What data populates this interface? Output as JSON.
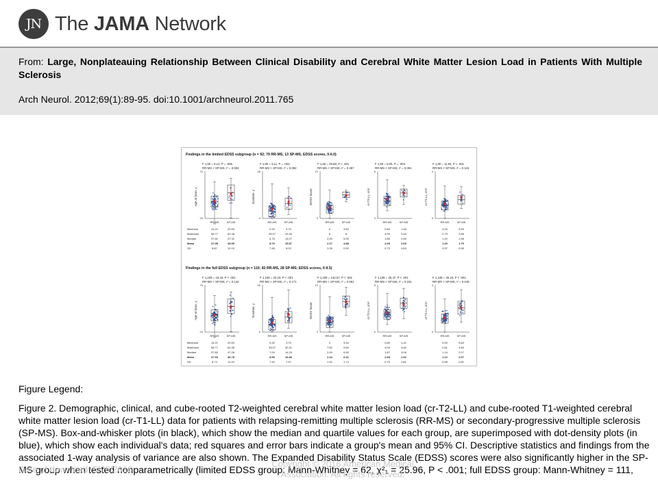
{
  "header": {
    "logo_mark": "JN",
    "logo_text_prefix": "The ",
    "logo_text_bold": "JAMA",
    "logo_text_suffix": " Network"
  },
  "citation": {
    "from_label": "From: ",
    "title": "Large, Nonplateauing Relationship Between Clinical Disability and Cerebral White Matter Lesion Load in Patients With Multiple Sclerosis",
    "reference": "Arch Neurol. 2012;69(1):89-95. doi:10.1001/archneurol.2011.765"
  },
  "figure": {
    "sections": [
      {
        "title": "Findings in the limited EDSS subgroup (n = 92; 79 RR-MS, 13 SP-MS; EDSS scores, 0-6.0)",
        "panels": [
          {
            "stat1": "F 1,90 = 8.14, P = .005",
            "stat2": "RR-MS < SP-MS, r² = 0.083",
            "ylabel": "Age at Scan, y",
            "ymax": "70",
            "ymin": "20",
            "rrms": {
              "min": 14.21,
              "max": 58.77,
              "median": 37.81,
              "mean": 37.95,
              "sd": 8.87
            },
            "spms": {
              "min": 20.53,
              "max": 62.48,
              "median": 47.32,
              "mean": 45.95,
              "sd": 12.15
            }
          },
          {
            "stat1": "F 1,90 = 9.11, P = .003",
            "stat2": "RR-MS < SP-MS, r² = 0.092",
            "ylabel": "Duration, y",
            "ymax": "45",
            "ymin": "0",
            "rrms": {
              "min": 0.32,
              "max": 33.07,
              "median": 6.75,
              "mean": 8.76,
              "sd": 7.46
            },
            "spms": {
              "min": 3.7,
              "max": 29.3,
              "median": 14.07,
              "mean": 15.57,
              "sd": 8.02
            }
          },
          {
            "stat1": "F 1,90 = 49.88, P < .001",
            "stat2": "RR-MS < SP-MS, r² = 0.357",
            "ylabel": "EDSS Score",
            "ymax": "10",
            "ymin": "0",
            "rrms": {
              "min": 0,
              "max": 6.0,
              "median": 2.0,
              "mean": 2.27,
              "sd": 1.28
            },
            "spms": {
              "min": 3.5,
              "max": 6.0,
              "median": 5.0,
              "mean": 4.88,
              "sd": 0.92
            }
          },
          {
            "stat1": "F 1,90 = 9.05, P = .003",
            "stat2": "RR-MS < SP-MS, r² = 0.091",
            "ylabel": "cr-T2-LL, cm³",
            "ymax": "5",
            "ymin": "0",
            "rrms": {
              "min": 0.8,
              "max": 4.09,
              "median": 1.85,
              "mean": 2.05,
              "sd": 0.73
            },
            "spms": {
              "min": 1.48,
              "max": 3.49,
              "median": 2.69,
              "mean": 2.69,
              "sd": 0.63
            }
          },
          {
            "stat1": "F 1,90 = 11.84, P < .001",
            "stat2": "RR-MS < SP-MS, r² = 0.116",
            "ylabel": "cr-T1-LL, cm³",
            "ymax": "4",
            "ymin": "0",
            "rrms": {
              "min": 0.0,
              "max": 2.75,
              "median": 1.1,
              "mean": 1.2,
              "sd": 0.57
            },
            "spms": {
              "min": 0.83,
              "max": 2.68,
              "median": 1.58,
              "mean": 1.79,
              "sd": 0.55
            }
          }
        ]
      },
      {
        "title": "Findings in the full EDSS subgroup (n = 110; 82 RR-MS, 28 SP-MS; EDSS scores, 0-9.5)",
        "panels": [
          {
            "stat1": "F 1,108 = 18.18, P < .001",
            "stat2": "RR-MS < SP-MS, r² = 0.144",
            "ylabel": "Age at Scan, y",
            "ymax": "70",
            "ymin": "20",
            "rrms": {
              "min": 14.21,
              "max": 58.77,
              "median": 37.82,
              "mean": 37.93,
              "sd": 8.74
            },
            "spms": {
              "min": 20.53,
              "max": 62.48,
              "median": 47.28,
              "mean": 46.78,
              "sd": 11.4
            }
          },
          {
            "stat1": "F 1,108 = 22.23, P < .001",
            "stat2": "RR-MS < SP-MS, r² = 0.171",
            "ylabel": "Duration, y",
            "ymax": "45",
            "ymin": "0",
            "rrms": {
              "min": 0.32,
              "max": 33.07,
              "median": 7.0,
              "mean": 8.99,
              "sd": 7.42
            },
            "spms": {
              "min": 3.7,
              "max": 40.31,
              "median": 14.29,
              "mean": 16.8,
              "sd": 7.97
            }
          },
          {
            "stat1": "F 1,108 = 132.57, P < .001",
            "stat2": "RR-MS < SP-MS, r² = 0.551",
            "ylabel": "EDSS Score",
            "ymax": "10",
            "ymin": "0",
            "rrms": {
              "min": 0,
              "max": 7.5,
              "median": 2.0,
              "mean": 2.44,
              "sd": 1.52
            },
            "spms": {
              "min": 3.5,
              "max": 9.5,
              "median": 6.5,
              "mean": 6.41,
              "sd": 1.72
            }
          },
          {
            "stat1": "F 1,108 = 25.47, P < .001",
            "stat2": "RR-MS < SP-MS, r² = 0.191",
            "ylabel": "cr-T2-LL, cm³",
            "ymax": "5",
            "ymin": "0",
            "rrms": {
              "min": 0.8,
              "max": 4.09,
              "median": 1.87,
              "mean": 2.08,
              "sd": 0.75
            },
            "spms": {
              "min": 1.42,
              "max": 4.6,
              "median": 3.06,
              "mean": 2.92,
              "sd": 0.81
            }
          },
          {
            "stat1": "F 1,108 = 35.23, P < .001",
            "stat2": "RR-MS < SP-MS, r² = 0.246",
            "ylabel": "cr-T1-LL, cm³",
            "ymax": "4",
            "ymin": "0",
            "rrms": {
              "min": 0.0,
              "max": 2.81,
              "median": 1.14,
              "mean": 1.22,
              "sd": 0.58
            },
            "spms": {
              "min": 0.83,
              "max": 3.59,
              "median": 2.07,
              "mean": 2.07,
              "sd": 0.81
            }
          }
        ]
      }
    ],
    "group_labels": [
      "RR-MS",
      "SP-MS"
    ],
    "stat_row_labels": [
      "Minimum",
      "Maximum",
      "Median",
      "Mean",
      "SD"
    ],
    "colors": {
      "dots": "#3a5aa8",
      "mean": "#d12a2a",
      "box": "#222222"
    }
  },
  "legend": {
    "heading": "Figure Legend:",
    "text": "Figure 2. Demographic, clinical, and cube-rooted T2-weighted cerebral white matter lesion load (cr-T2-LL) and cube-rooted T1-weighted cerebral white matter lesion load (cr-T1-LL) data for patients with relapsing-remitting multiple sclerosis (RR-MS) or secondary-progressive multiple sclerosis (SP-MS). Box-and-whisker plots (in black), which show the median and quartile values for each group, are superimposed with dot-density plots (in blue), which show each individual's data; red squares and error bars indicate a group's mean and 95% CI. Descriptive statistics and findings from the associated 1-way analysis of variance are also shown. The Expanded Disability Status Scale (EDSS) scores were also significantly higher in the SP-MS group when tested nonparametrically (limited EDSS group: Mann-Whitney = 62, χ²₁ = 25.96, P < .001; full EDSS group: Mann-Whitney = 111,"
  },
  "footer": {
    "date": "Date of download:  5/28/2016",
    "copyright": "Copyright © 2016 American Medical Association. All rights reserved."
  }
}
